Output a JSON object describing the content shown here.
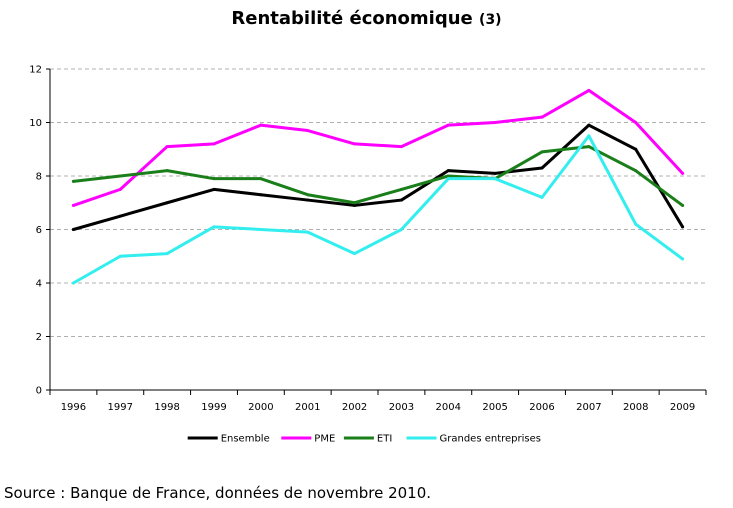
{
  "title": "Rentabilité économique",
  "title_note": "(3)",
  "source": "Source : Banque de France, données de novembre 2010.",
  "chart_data": {
    "type": "line",
    "title": "Rentabilité économique (3)",
    "xlabel": "",
    "ylabel": "",
    "x": [
      "1996",
      "1997",
      "1998",
      "1999",
      "2000",
      "2001",
      "2002",
      "2003",
      "2004",
      "2005",
      "2006",
      "2007",
      "2008",
      "2009"
    ],
    "ylim": [
      0,
      12
    ],
    "yticks": [
      0,
      2,
      4,
      6,
      8,
      10,
      12
    ],
    "grid": "horizontal-dashed",
    "legend": "bottom",
    "series": [
      {
        "name": "Ensemble",
        "color": "#000000",
        "values": [
          6.0,
          6.5,
          7.0,
          7.5,
          7.3,
          7.1,
          6.9,
          7.1,
          8.2,
          8.1,
          8.3,
          9.9,
          9.0,
          6.1
        ]
      },
      {
        "name": "PME",
        "color": "#ff00ff",
        "values": [
          6.9,
          7.5,
          9.1,
          9.2,
          9.9,
          9.7,
          9.2,
          9.1,
          9.9,
          10.0,
          10.2,
          11.2,
          10.0,
          8.1
        ]
      },
      {
        "name": "ETI",
        "color": "#1a7f1a",
        "values": [
          7.8,
          8.0,
          8.2,
          7.9,
          7.9,
          7.3,
          7.0,
          7.5,
          8.0,
          7.9,
          8.9,
          9.1,
          8.2,
          6.9
        ]
      },
      {
        "name": "Grandes entreprises",
        "color": "#33eeee",
        "values": [
          4.0,
          5.0,
          5.1,
          6.1,
          6.0,
          5.9,
          5.1,
          6.0,
          7.9,
          7.9,
          7.2,
          9.5,
          6.2,
          4.9
        ]
      }
    ]
  }
}
